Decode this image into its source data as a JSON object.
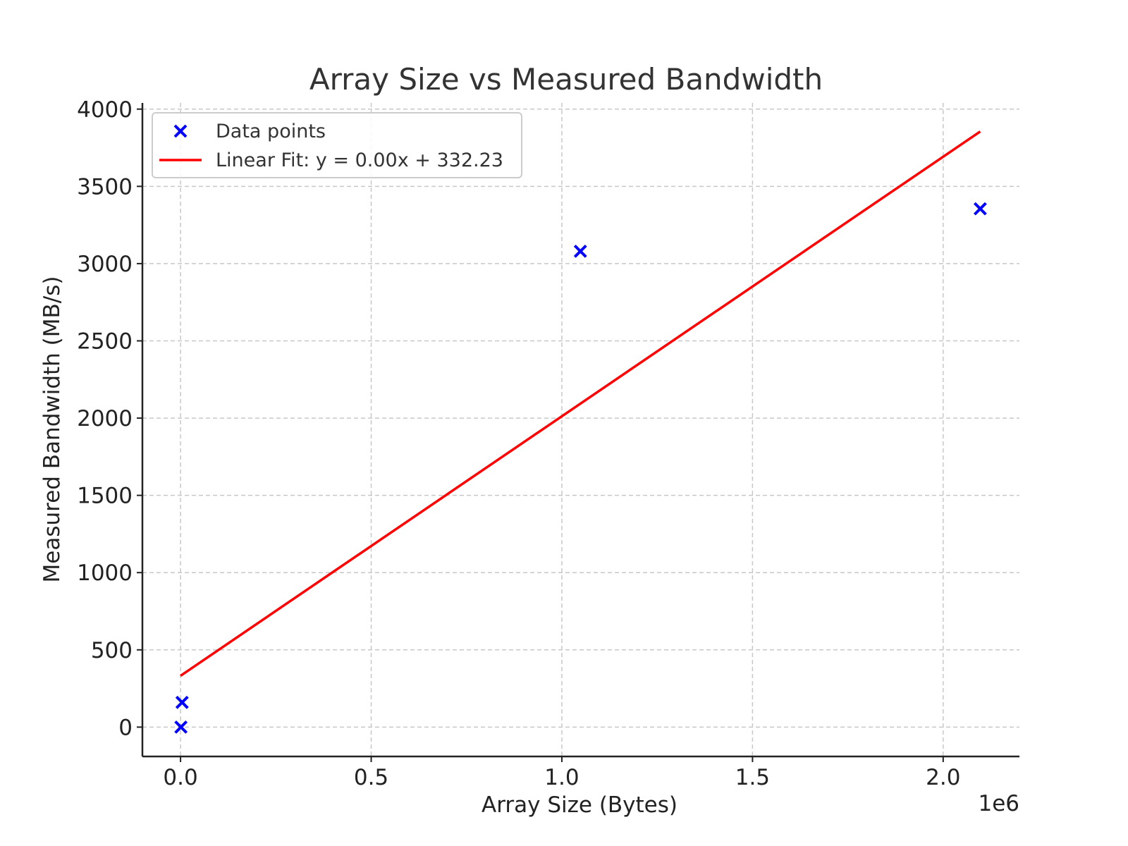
{
  "chart_data": {
    "type": "scatter",
    "title": "Array Size vs Measured Bandwidth",
    "xlabel": "Array Size (Bytes)",
    "ylabel": "Measured Bandwidth (MB/s)",
    "x_offset_label": "1e6",
    "xlim": [
      -100000,
      2200000
    ],
    "ylim": [
      -190,
      4040
    ],
    "x_ticks": [
      0,
      500000,
      1000000,
      1500000,
      2000000
    ],
    "x_tick_labels": [
      "0.0",
      "0.5",
      "1.0",
      "1.5",
      "2.0"
    ],
    "y_ticks": [
      0,
      500,
      1000,
      1500,
      2000,
      2500,
      3000,
      3500,
      4000
    ],
    "y_tick_labels": [
      "0",
      "500",
      "1000",
      "1500",
      "2000",
      "2500",
      "3000",
      "3500",
      "4000"
    ],
    "grid": true,
    "legend_position": "top-left",
    "series": [
      {
        "name": "Data points",
        "kind": "scatter",
        "marker": "x",
        "color": "#0000ff",
        "x": [
          1024,
          4096,
          1048576,
          2097152
        ],
        "y": [
          0,
          160,
          3080,
          3355
        ]
      },
      {
        "name": "Linear Fit: y = 0.00x + 332.23",
        "kind": "line",
        "color": "#ff0000",
        "x": [
          0,
          2097152
        ],
        "y": [
          332.23,
          3855
        ]
      }
    ]
  }
}
